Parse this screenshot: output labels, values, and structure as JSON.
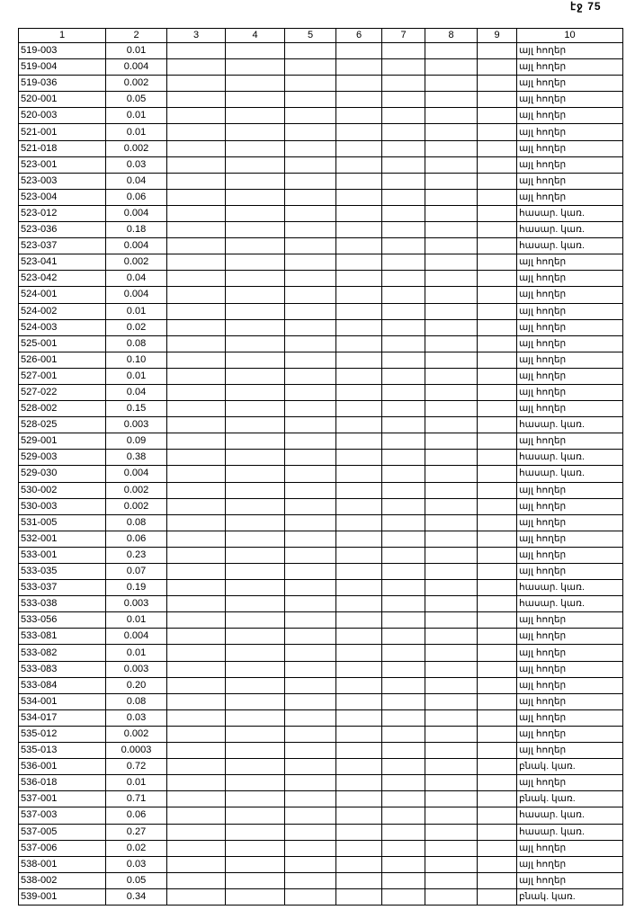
{
  "page_number": "էջ 75",
  "columns": [
    "1",
    "2",
    "3",
    "4",
    "5",
    "6",
    "7",
    "8",
    "9",
    "10"
  ],
  "rows": [
    [
      "519-003",
      "0.01",
      "այլ հողեր"
    ],
    [
      "519-004",
      "0.004",
      "այլ հողեր"
    ],
    [
      "519-036",
      "0.002",
      "այլ հողեր"
    ],
    [
      "520-001",
      "0.05",
      "այլ հողեր"
    ],
    [
      "520-003",
      "0.01",
      "այլ հողեր"
    ],
    [
      "521-001",
      "0.01",
      "այլ հողեր"
    ],
    [
      "521-018",
      "0.002",
      "այլ հողեր"
    ],
    [
      "523-001",
      "0.03",
      "այլ հողեր"
    ],
    [
      "523-003",
      "0.04",
      "այլ հողեր"
    ],
    [
      "523-004",
      "0.06",
      "այլ հողեր"
    ],
    [
      "523-012",
      "0.004",
      "հասար. կառ."
    ],
    [
      "523-036",
      "0.18",
      "հասար. կառ."
    ],
    [
      "523-037",
      "0.004",
      "հասար. կառ."
    ],
    [
      "523-041",
      "0.002",
      "այլ հողեր"
    ],
    [
      "523-042",
      "0.04",
      "այլ հողեր"
    ],
    [
      "524-001",
      "0.004",
      "այլ հողեր"
    ],
    [
      "524-002",
      "0.01",
      "այլ հողեր"
    ],
    [
      "524-003",
      "0.02",
      "այլ հողեր"
    ],
    [
      "525-001",
      "0.08",
      "այլ հողեր"
    ],
    [
      "526-001",
      "0.10",
      "այլ հողեր"
    ],
    [
      "527-001",
      "0.01",
      "այլ հողեր"
    ],
    [
      "527-022",
      "0.04",
      "այլ հողեր"
    ],
    [
      "528-002",
      "0.15",
      "այլ հողեր"
    ],
    [
      "528-025",
      "0.003",
      "հասար. կառ."
    ],
    [
      "529-001",
      "0.09",
      "այլ հողեր"
    ],
    [
      "529-003",
      "0.38",
      "հասար. կառ."
    ],
    [
      "529-030",
      "0.004",
      "հասար. կառ."
    ],
    [
      "530-002",
      "0.002",
      "այլ հողեր"
    ],
    [
      "530-003",
      "0.002",
      "այլ հողեր"
    ],
    [
      "531-005",
      "0.08",
      "այլ հողեր"
    ],
    [
      "532-001",
      "0.06",
      "այլ հողեր"
    ],
    [
      "533-001",
      "0.23",
      "այլ հողեր"
    ],
    [
      "533-035",
      "0.07",
      "այլ հողեր"
    ],
    [
      "533-037",
      "0.19",
      "հասար. կառ."
    ],
    [
      "533-038",
      "0.003",
      "հասար. կառ."
    ],
    [
      "533-056",
      "0.01",
      "այլ հողեր"
    ],
    [
      "533-081",
      "0.004",
      "այլ հողեր"
    ],
    [
      "533-082",
      "0.01",
      "այլ հողեր"
    ],
    [
      "533-083",
      "0.003",
      "այլ հողեր"
    ],
    [
      "533-084",
      "0.20",
      "այլ հողեր"
    ],
    [
      "534-001",
      "0.08",
      "այլ հողեր"
    ],
    [
      "534-017",
      "0.03",
      "այլ հողեր"
    ],
    [
      "535-012",
      "0.002",
      "այլ հողեր"
    ],
    [
      "535-013",
      "0.0003",
      "այլ հողեր"
    ],
    [
      "536-001",
      "0.72",
      "բնակ. կառ."
    ],
    [
      "536-018",
      "0.01",
      "այլ հողեր"
    ],
    [
      "537-001",
      "0.71",
      "բնակ. կառ."
    ],
    [
      "537-003",
      "0.06",
      "հասար. կառ."
    ],
    [
      "537-005",
      "0.27",
      "հասար. կառ."
    ],
    [
      "537-006",
      "0.02",
      "այլ հողեր"
    ],
    [
      "538-001",
      "0.03",
      "այլ հողեր"
    ],
    [
      "538-002",
      "0.05",
      "այլ հողեր"
    ],
    [
      "539-001",
      "0.34",
      "բնակ. կառ."
    ]
  ]
}
